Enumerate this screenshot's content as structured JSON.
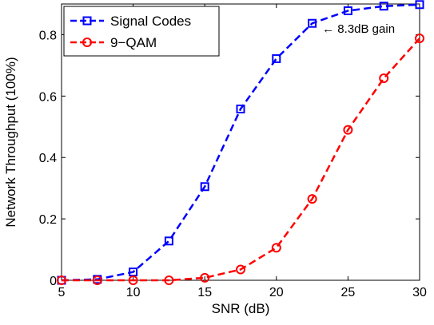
{
  "chart_data": {
    "type": "line",
    "title": "",
    "xlabel": "SNR (dB)",
    "ylabel": "Network Throughput (100%)",
    "xlim": [
      5,
      30
    ],
    "ylim": [
      0,
      0.9
    ],
    "xticks": [
      5,
      10,
      15,
      20,
      25,
      30
    ],
    "yticks": [
      0,
      0.2,
      0.4,
      0.6,
      0.8
    ],
    "yticklabels": [
      "0",
      "0.2",
      "0.4",
      "0.6",
      "0.8"
    ],
    "grid": false,
    "legend_position": "top-left",
    "x": [
      5,
      7.5,
      10,
      12.5,
      15,
      17.5,
      20,
      22.5,
      25,
      27.5,
      30
    ],
    "series": [
      {
        "name": "Signal Codes",
        "color": "#0000ff",
        "marker": "square",
        "line_style": "dashed",
        "values": [
          0.0,
          0.003,
          0.027,
          0.128,
          0.305,
          0.558,
          0.722,
          0.837,
          0.878,
          0.893,
          0.898
        ]
      },
      {
        "name": "9−QAM",
        "color": "#ff0000",
        "marker": "circle",
        "line_style": "dashed",
        "values": [
          0.0,
          0.0,
          0.0,
          0.0,
          0.008,
          0.035,
          0.106,
          0.265,
          0.49,
          0.658,
          0.788
        ]
      }
    ],
    "annotations": [
      {
        "text": "← 8.3dB gain",
        "x": 23.2,
        "y": 0.82
      }
    ]
  }
}
